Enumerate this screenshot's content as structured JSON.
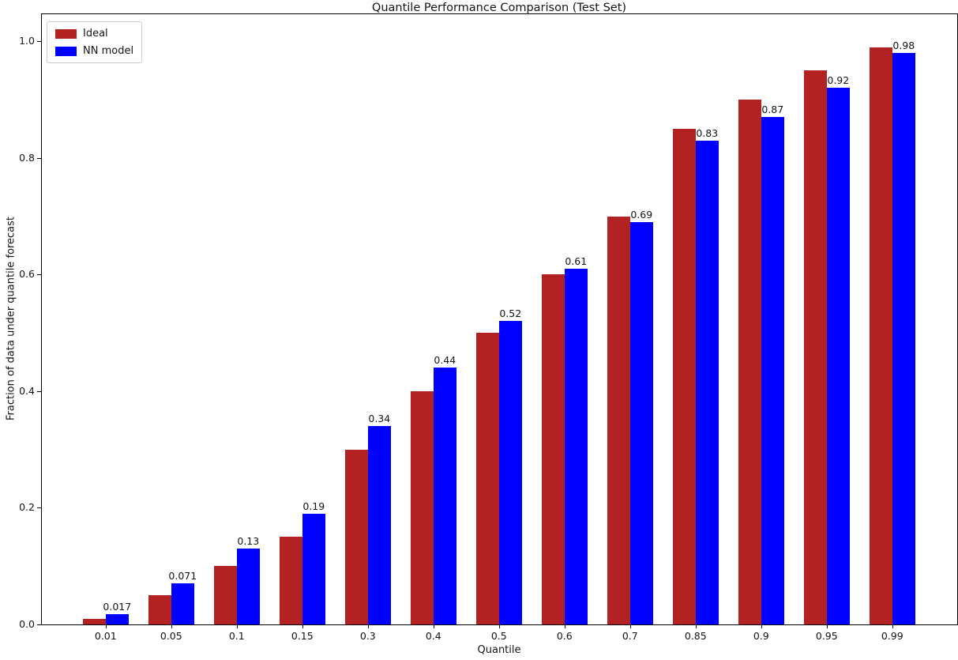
{
  "title": "Quantile Performance Comparison (Test Set)",
  "chart_data": {
    "type": "bar",
    "title": "Quantile Performance Comparison (Test Set)",
    "xlabel": "Quantile",
    "ylabel": "Fraction of data under quantile forecast",
    "categories": [
      "0.01",
      "0.05",
      "0.1",
      "0.15",
      "0.3",
      "0.4",
      "0.5",
      "0.6",
      "0.7",
      "0.85",
      "0.9",
      "0.95",
      "0.99"
    ],
    "series": [
      {
        "name": "Ideal",
        "color": "#b22222",
        "values": [
          0.01,
          0.05,
          0.1,
          0.15,
          0.3,
          0.4,
          0.5,
          0.6,
          0.7,
          0.85,
          0.9,
          0.95,
          0.99
        ]
      },
      {
        "name": "NN model",
        "color": "#0000ff",
        "values": [
          0.017,
          0.071,
          0.13,
          0.19,
          0.34,
          0.44,
          0.52,
          0.61,
          0.69,
          0.83,
          0.87,
          0.92,
          0.98
        ]
      }
    ],
    "bar_labels": [
      "0.017",
      "0.071",
      "0.13",
      "0.19",
      "0.34",
      "0.44",
      "0.52",
      "0.61",
      "0.69",
      "0.83",
      "0.87",
      "0.92",
      "0.98"
    ],
    "bar_label_series": "NN model",
    "yticks": [
      "0.0",
      "0.2",
      "0.4",
      "0.6",
      "0.8",
      "1.0"
    ],
    "ytick_values": [
      0.0,
      0.2,
      0.4,
      0.6,
      0.8,
      1.0
    ],
    "ylim": [
      0,
      1.048
    ],
    "grid": false,
    "legend": {
      "position": "upper-left",
      "entries": [
        "Ideal",
        "NN model"
      ]
    }
  }
}
